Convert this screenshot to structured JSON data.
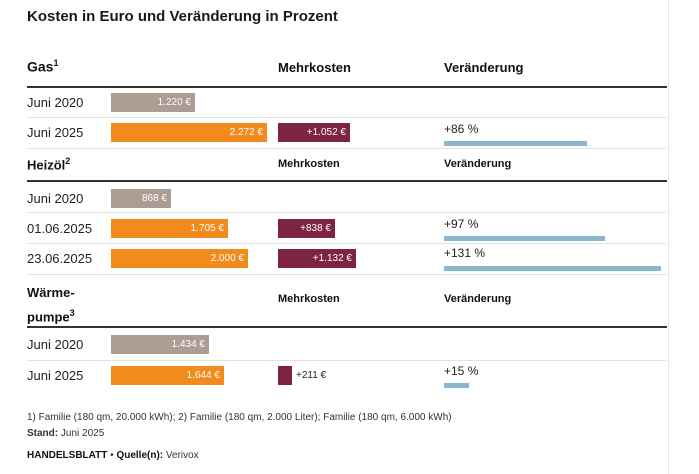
{
  "title": "Kosten in Euro und Veränderung in Prozent",
  "chart_data": {
    "type": "bar",
    "title": "Kosten in Euro und Veränderung in Prozent",
    "columns": {
      "mehrkosten": "Mehrkosten",
      "veraenderung": "Veränderung"
    },
    "groups": [
      {
        "name": "Gas",
        "footnote_ref": "1",
        "rows": [
          {
            "label": "Juni 2020",
            "type": "base",
            "value": 1220,
            "value_label": "1.220 €"
          },
          {
            "label": "Juni 2025",
            "type": "current",
            "value": 2272,
            "value_label": "2.272 €",
            "extra": 1052,
            "extra_label": "+1.052 €",
            "change_pct": 86,
            "change_label": "+86 %"
          }
        ]
      },
      {
        "name": "Heizöl",
        "footnote_ref": "2",
        "rows": [
          {
            "label": "Juni 2020",
            "type": "base",
            "value": 868,
            "value_label": "868 €"
          },
          {
            "label": "01.06.2025",
            "type": "current",
            "value": 1705,
            "value_label": "1.705 €",
            "extra": 838,
            "extra_label": "+838 €",
            "change_pct": 97,
            "change_label": "+97 %"
          },
          {
            "label": "23.06.2025",
            "type": "current",
            "value": 2000,
            "value_label": "2.000 €",
            "extra": 1132,
            "extra_label": "+1.132 €",
            "change_pct": 131,
            "change_label": "+131 %"
          }
        ]
      },
      {
        "name_line1": "Wärme-",
        "name_line2": "pumpe",
        "footnote_ref": "3",
        "rows": [
          {
            "label": "Juni 2020",
            "type": "base",
            "value": 1434,
            "value_label": "1.434 €"
          },
          {
            "label": "Juni 2025",
            "type": "current",
            "value": 1644,
            "value_label": "1.644 €",
            "extra": 211,
            "extra_label": "+211 €",
            "change_pct": 15,
            "change_label": "+15 %"
          }
        ]
      }
    ]
  },
  "footnote": "1) Familie (180 qm, 20.000 kWh); 2) Familie (180 qm, 2.000 Liter); Familie (180 qm, 6.000 kWh)",
  "stand_label": "Stand:",
  "stand_value": "Juni 2025",
  "source_brand": "HANDELSBLATT",
  "source_sep": "•",
  "source_label": "Quelle(n):",
  "source_value": "Verivox"
}
